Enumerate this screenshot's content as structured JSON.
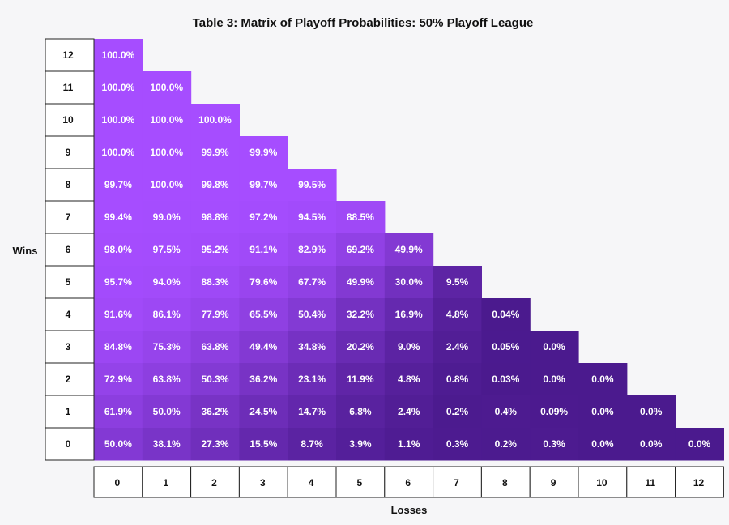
{
  "chart_data": {
    "type": "heatmap",
    "title": "Table 3: Matrix of Playoff Probabilities: 50% Playoff League",
    "xlabel": "Losses",
    "ylabel": "Wins",
    "x_ticks": [
      "0",
      "1",
      "2",
      "3",
      "4",
      "5",
      "6",
      "7",
      "8",
      "9",
      "10",
      "11",
      "12"
    ],
    "y_ticks": [
      "12",
      "11",
      "10",
      "9",
      "8",
      "7",
      "6",
      "5",
      "4",
      "3",
      "2",
      "1",
      "0"
    ],
    "colors": {
      "high": "#a64dff",
      "low": "#4b1a8e"
    },
    "rows": [
      {
        "wins": "12",
        "values": [
          "100.0%"
        ]
      },
      {
        "wins": "11",
        "values": [
          "100.0%",
          "100.0%"
        ]
      },
      {
        "wins": "10",
        "values": [
          "100.0%",
          "100.0%",
          "100.0%"
        ]
      },
      {
        "wins": "9",
        "values": [
          "100.0%",
          "100.0%",
          "99.9%",
          "99.9%"
        ]
      },
      {
        "wins": "8",
        "values": [
          "99.7%",
          "100.0%",
          "99.8%",
          "99.7%",
          "99.5%"
        ]
      },
      {
        "wins": "7",
        "values": [
          "99.4%",
          "99.0%",
          "98.8%",
          "97.2%",
          "94.5%",
          "88.5%"
        ]
      },
      {
        "wins": "6",
        "values": [
          "98.0%",
          "97.5%",
          "95.2%",
          "91.1%",
          "82.9%",
          "69.2%",
          "49.9%"
        ]
      },
      {
        "wins": "5",
        "values": [
          "95.7%",
          "94.0%",
          "88.3%",
          "79.6%",
          "67.7%",
          "49.9%",
          "30.0%",
          "9.5%"
        ]
      },
      {
        "wins": "4",
        "values": [
          "91.6%",
          "86.1%",
          "77.9%",
          "65.5%",
          "50.4%",
          "32.2%",
          "16.9%",
          "4.8%",
          "0.04%"
        ]
      },
      {
        "wins": "3",
        "values": [
          "84.8%",
          "75.3%",
          "63.8%",
          "49.4%",
          "34.8%",
          "20.2%",
          "9.0%",
          "2.4%",
          "0.05%",
          "0.0%"
        ]
      },
      {
        "wins": "2",
        "values": [
          "72.9%",
          "63.8%",
          "50.3%",
          "36.2%",
          "23.1%",
          "11.9%",
          "4.8%",
          "0.8%",
          "0.03%",
          "0.0%",
          "0.0%"
        ]
      },
      {
        "wins": "1",
        "values": [
          "61.9%",
          "50.0%",
          "36.2%",
          "24.5%",
          "14.7%",
          "6.8%",
          "2.4%",
          "0.2%",
          "0.4%",
          "0.09%",
          "0.0%",
          "0.0%"
        ]
      },
      {
        "wins": "0",
        "values": [
          "50.0%",
          "38.1%",
          "27.3%",
          "15.5%",
          "8.7%",
          "3.9%",
          "1.1%",
          "0.3%",
          "0.2%",
          "0.3%",
          "0.0%",
          "0.0%",
          "0.0%"
        ]
      }
    ]
  }
}
